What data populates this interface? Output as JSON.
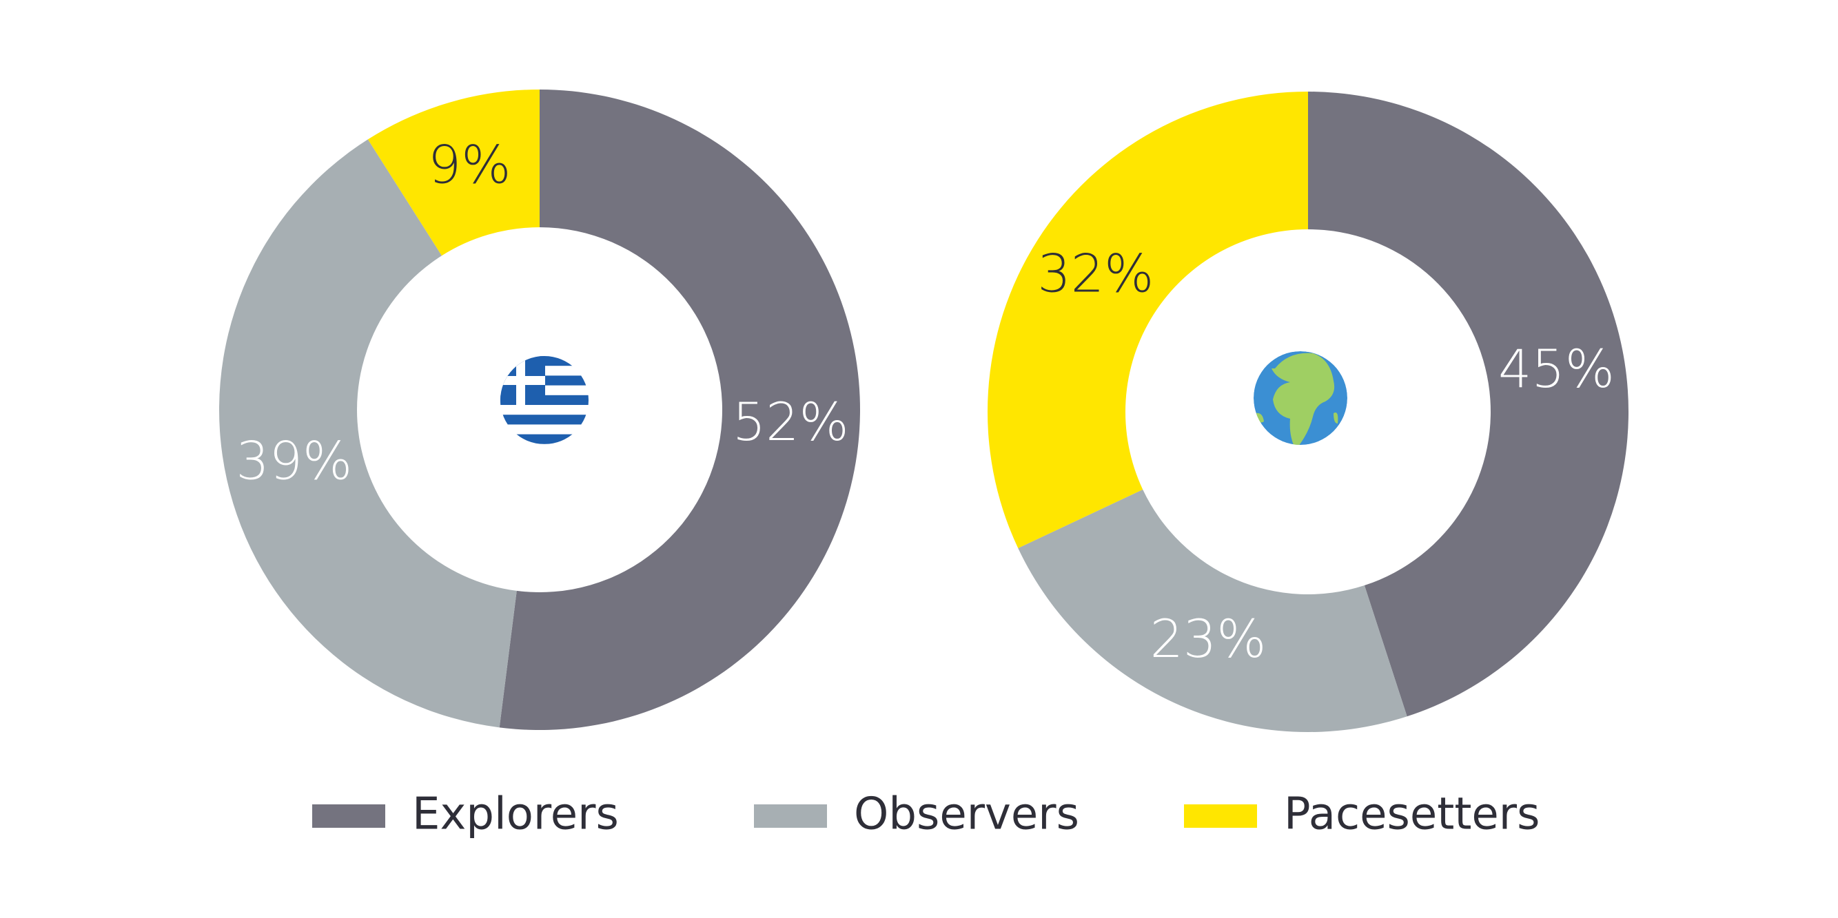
{
  "chart_data": {
    "type": "donut",
    "categories": [
      "Explorers",
      "Observers",
      "Pacesetters"
    ],
    "colors": [
      "#74737f",
      "#a7afb3",
      "#ffe600"
    ],
    "series": [
      {
        "values": [
          52,
          39,
          9
        ],
        "value_labels": [
          "52%",
          "39%",
          "9%"
        ]
      },
      {
        "values": [
          45,
          23,
          32
        ],
        "value_labels": [
          "45%",
          "23%",
          "32%"
        ]
      }
    ]
  }
}
